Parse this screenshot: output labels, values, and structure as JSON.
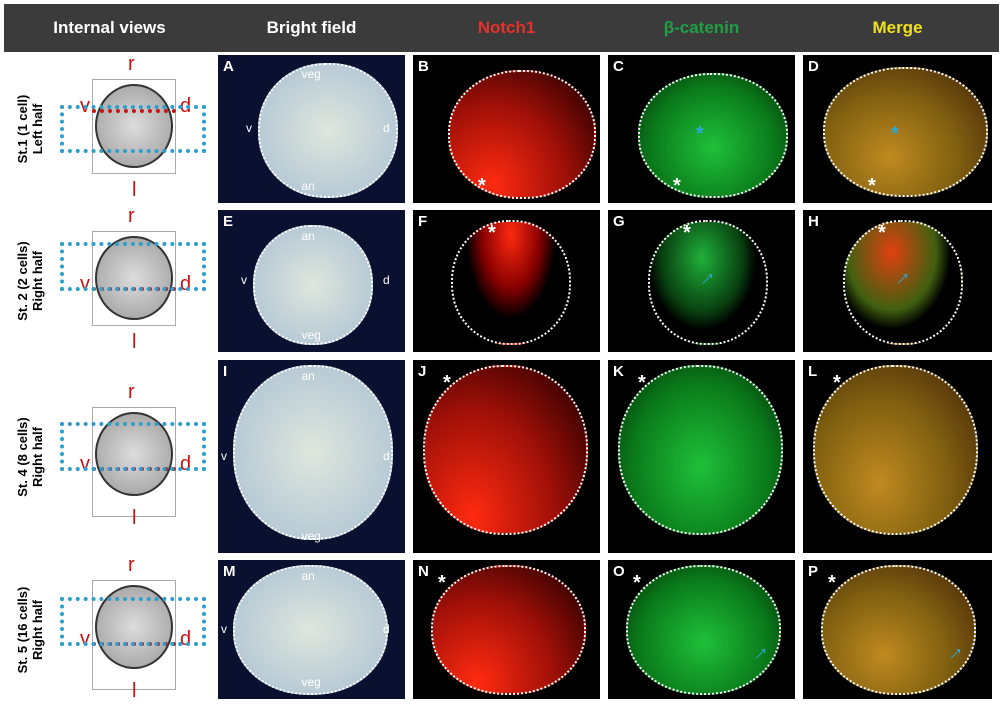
{
  "header": {
    "columns": [
      {
        "label": "Internal views",
        "color": "#ffffff"
      },
      {
        "label": "Bright field",
        "color": "#ffffff"
      },
      {
        "label": "Notch1",
        "color": "#e8302a"
      },
      {
        "label": "β-catenin",
        "color": "#1fa045"
      },
      {
        "label": "Merge",
        "color": "#f0e020"
      }
    ]
  },
  "axes": {
    "r": "r",
    "l": "l",
    "v": "v",
    "d": "d"
  },
  "rows": [
    {
      "stage": "St.1 (1 cell)",
      "half": "Left half",
      "panels": [
        "A",
        "B",
        "C",
        "D"
      ],
      "labels": {
        "top": "veg",
        "bottom": "an",
        "left": "v",
        "right": "d"
      }
    },
    {
      "stage": "St. 2 (2 cells)",
      "half": "Right half",
      "panels": [
        "E",
        "F",
        "G",
        "H"
      ],
      "labels": {
        "top": "an",
        "bottom": "veg",
        "left": "v",
        "right": "d"
      }
    },
    {
      "stage": "St. 4 (8 cells)",
      "half": "Right half",
      "panels": [
        "I",
        "J",
        "K",
        "L"
      ],
      "labels": {
        "top": "an",
        "bottom": "veg",
        "left": "v",
        "right": "d"
      }
    },
    {
      "stage": "St. 5 (16 cells)",
      "half": "Right half",
      "panels": [
        "M",
        "N",
        "O",
        "P"
      ],
      "labels": {
        "top": "an",
        "bottom": "veg",
        "left": "v",
        "right": "d"
      }
    }
  ],
  "marks": {
    "star": "*",
    "arrow": "↑"
  }
}
